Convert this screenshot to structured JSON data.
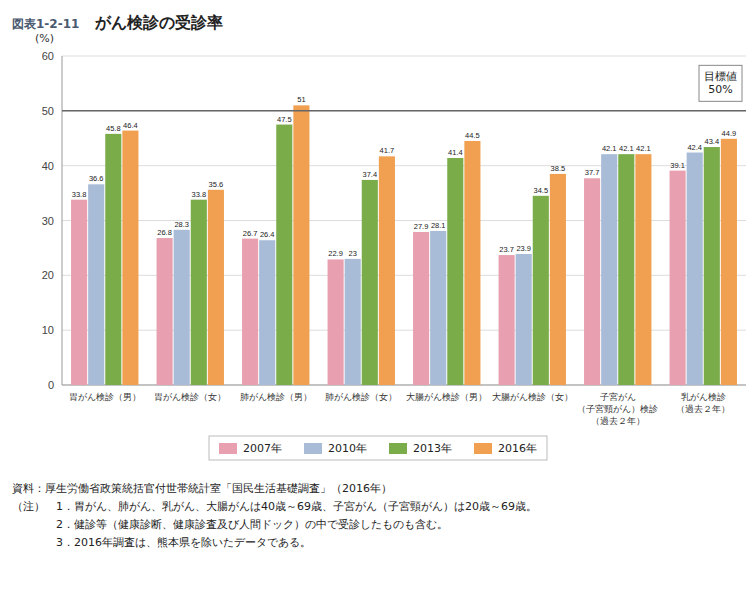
{
  "chart_data": {
    "type": "bar",
    "title": "がん検診の受診率",
    "subtitle": "図表1-2-11",
    "y_label": "(%)",
    "categories": [
      "胃がん検診（男）",
      "胃がん検診（女）",
      "肺がん検診（男）",
      "肺がん検診（女）",
      "大腸がん検診（男）",
      "大腸がん検診（女）",
      "子宮がん\n（子宮頸がん）検診\n（過去２年）",
      "乳がん検診\n（過去２年）"
    ],
    "series": [
      {
        "name": "2007年",
        "color": "#e8a0b0",
        "values": [
          33.8,
          26.8,
          26.7,
          22.9,
          27.9,
          23.7,
          37.7,
          39.1
        ]
      },
      {
        "name": "2010年",
        "color": "#a8bcd8",
        "values": [
          36.6,
          28.3,
          26.4,
          23.0,
          28.1,
          23.9,
          42.1,
          42.4
        ]
      },
      {
        "name": "2013年",
        "color": "#7aad4a",
        "values": [
          45.8,
          33.8,
          47.5,
          37.4,
          41.4,
          34.5,
          42.1,
          43.4
        ]
      },
      {
        "name": "2016年",
        "color": "#f0a050",
        "values": [
          46.4,
          35.6,
          51.0,
          41.7,
          44.5,
          38.5,
          42.1,
          44.9
        ]
      }
    ],
    "ylim": [
      0,
      60
    ],
    "yticks": [
      0,
      10,
      20,
      30,
      40,
      50,
      60
    ],
    "grid": true,
    "legend": "bottom",
    "data_labels": true,
    "annotations": [
      {
        "text": "目標値\n50%",
        "y": 50
      }
    ],
    "notes": [
      "資料：厚生労働省政策統括官付世帯統計室「国民生活基礎調査」（2016年）",
      "（注）　1．胃がん、肺がん、乳がん、大腸がんは40歳～69歳、子宮がん（子宮頸がん）は20歳～69歳。",
      "　　　　2．健診等（健康診断、健康診査及び人間ドック）の中で受診したものも含む。",
      "　　　　3．2016年調査は、熊本県を除いたデータである。"
    ]
  }
}
